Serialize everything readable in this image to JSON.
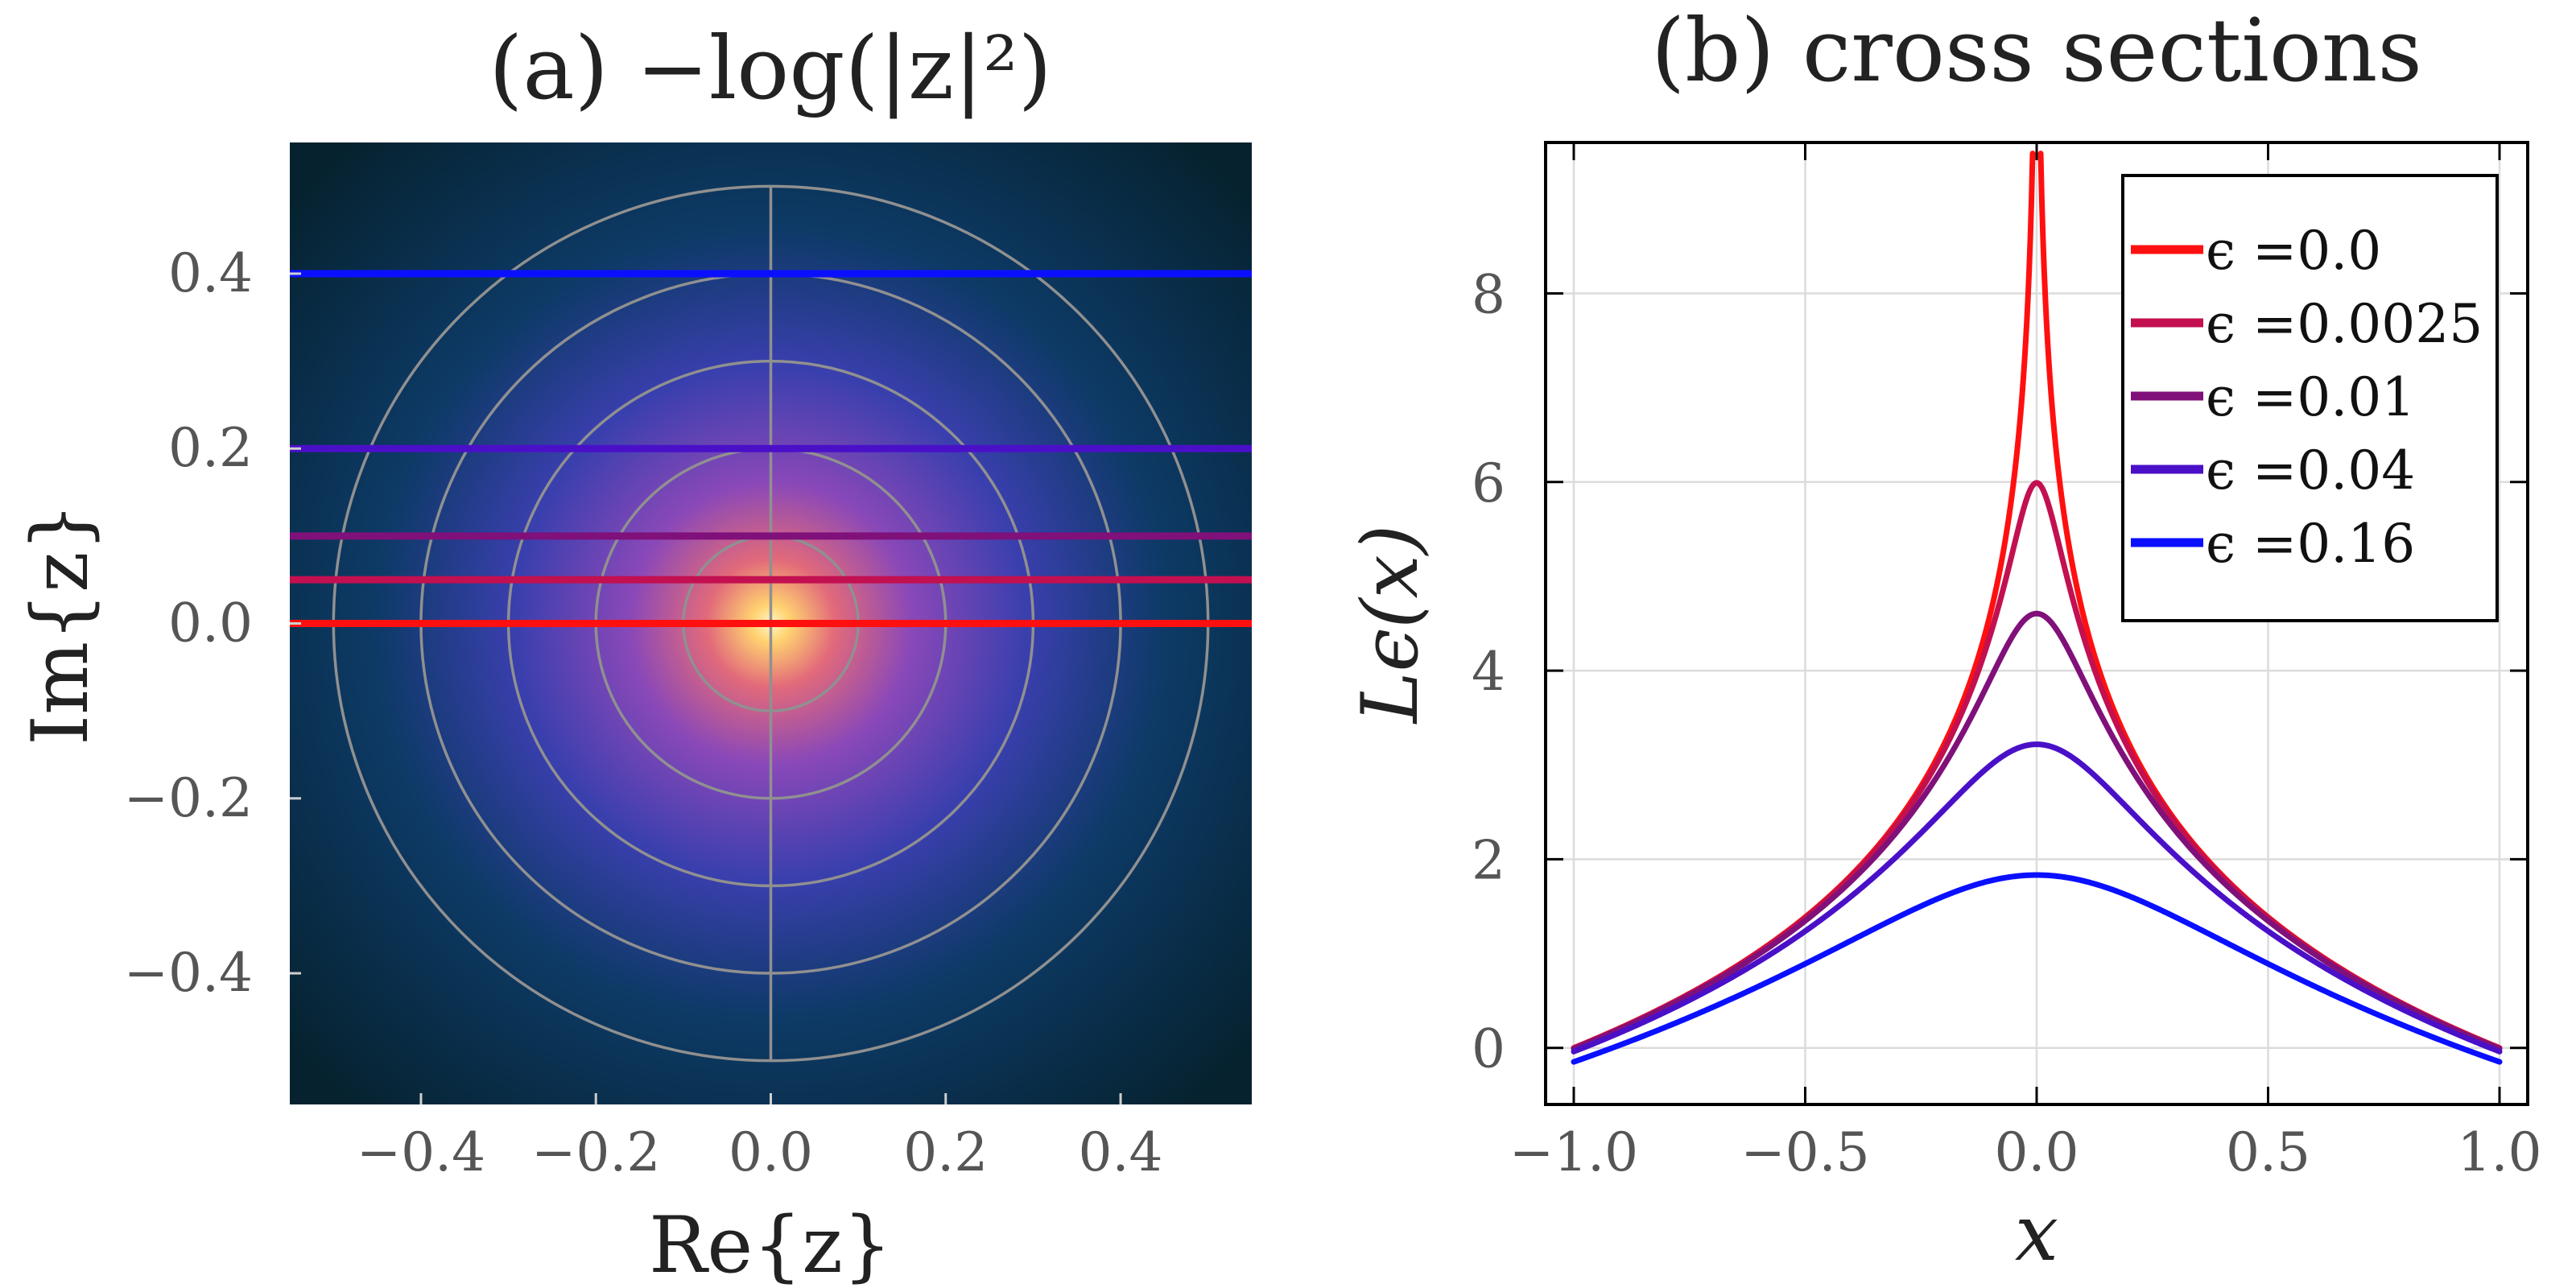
{
  "chart_data": [
    {
      "type": "heatmap",
      "title": "(a)  −log(|z|²)",
      "xlabel": "Re{z}",
      "ylabel": "Im{z}",
      "xlim": [
        -0.55,
        0.55
      ],
      "ylim": [
        -0.55,
        0.55
      ],
      "xticks": [
        "−0.4",
        "−0.2",
        "0.0",
        "0.2",
        "0.4"
      ],
      "xtick_values": [
        -0.4,
        -0.2,
        0.0,
        0.2,
        0.4
      ],
      "yticks": [
        "0.4",
        "0.2",
        "0.0",
        "−0.2",
        "−0.4"
      ],
      "ytick_values": [
        0.4,
        0.2,
        0.0,
        -0.2,
        -0.4
      ],
      "colormap": [
        "#06222f",
        "#0d3a66",
        "#3a3fae",
        "#8a48b8",
        "#e26a7a",
        "#ffd270",
        "#fff6c8"
      ],
      "contour_radii": [
        0.1,
        0.2,
        0.3,
        0.4,
        0.5
      ],
      "contour_color": "#909090",
      "crosshair_color": "#909090",
      "horizontal_lines": [
        {
          "y": 0.0,
          "color": "#ff1010"
        },
        {
          "y": 0.05,
          "color": "#c21050"
        },
        {
          "y": 0.1,
          "color": "#80107a"
        },
        {
          "y": 0.2,
          "color": "#4a10c8"
        },
        {
          "y": 0.4,
          "color": "#0a10ff"
        }
      ]
    },
    {
      "type": "line",
      "title": "(b) cross sections",
      "xlabel": "x",
      "ylabel": "Lϵ(x)",
      "xlim": [
        -1.0,
        1.0
      ],
      "ylim": [
        -0.6,
        9.6
      ],
      "xticks": [
        "−1.0",
        "−0.5",
        "0.0",
        "0.5",
        "1.0"
      ],
      "xtick_values": [
        -1.0,
        -0.5,
        0.0,
        0.5,
        1.0
      ],
      "yticks": [
        "0",
        "2",
        "4",
        "6",
        "8"
      ],
      "ytick_values": [
        0,
        2,
        4,
        6,
        8
      ],
      "grid": true,
      "legend_position": "top-right",
      "series": [
        {
          "name": "ϵ =0.0",
          "epsilon": 0.0,
          "color": "#ff1010",
          "x": [
            -1.0,
            -0.5,
            -0.2,
            -0.1,
            -0.05,
            -0.01,
            0.01,
            0.05,
            0.1,
            0.2,
            0.5,
            1.0
          ],
          "y": [
            0.0,
            1.39,
            3.22,
            4.61,
            5.99,
            9.21,
            9.21,
            5.99,
            4.61,
            3.22,
            1.39,
            0.0
          ]
        },
        {
          "name": "ϵ =0.0025",
          "epsilon": 0.0025,
          "color": "#c21050",
          "x": [
            -1.0,
            -0.5,
            -0.2,
            -0.1,
            0.0,
            0.1,
            0.2,
            0.5,
            1.0
          ],
          "y": [
            -0.0025,
            1.38,
            3.15,
            4.38,
            5.99,
            4.38,
            3.15,
            1.38,
            -0.0025
          ]
        },
        {
          "name": "ϵ =0.01",
          "epsilon": 0.01,
          "color": "#80107a",
          "x": [
            -1.0,
            -0.5,
            -0.2,
            -0.1,
            0.0,
            0.1,
            0.2,
            0.5,
            1.0
          ],
          "y": [
            -0.01,
            1.35,
            2.99,
            3.91,
            4.61,
            3.91,
            2.99,
            1.35,
            -0.01
          ]
        },
        {
          "name": "ϵ =0.04",
          "epsilon": 0.04,
          "color": "#4a10c8",
          "x": [
            -1.0,
            -0.5,
            -0.2,
            -0.1,
            0.0,
            0.1,
            0.2,
            0.5,
            1.0
          ],
          "y": [
            -0.04,
            1.24,
            2.53,
            2.99,
            3.22,
            2.99,
            2.53,
            1.24,
            -0.04
          ]
        },
        {
          "name": "ϵ =0.16",
          "epsilon": 0.16,
          "color": "#0a10ff",
          "x": [
            -1.0,
            -0.5,
            -0.2,
            -0.1,
            0.0,
            0.1,
            0.2,
            0.5,
            1.0
          ],
          "y": [
            -0.15,
            0.92,
            1.61,
            1.78,
            1.83,
            1.78,
            1.61,
            0.92,
            -0.15
          ]
        }
      ]
    }
  ]
}
